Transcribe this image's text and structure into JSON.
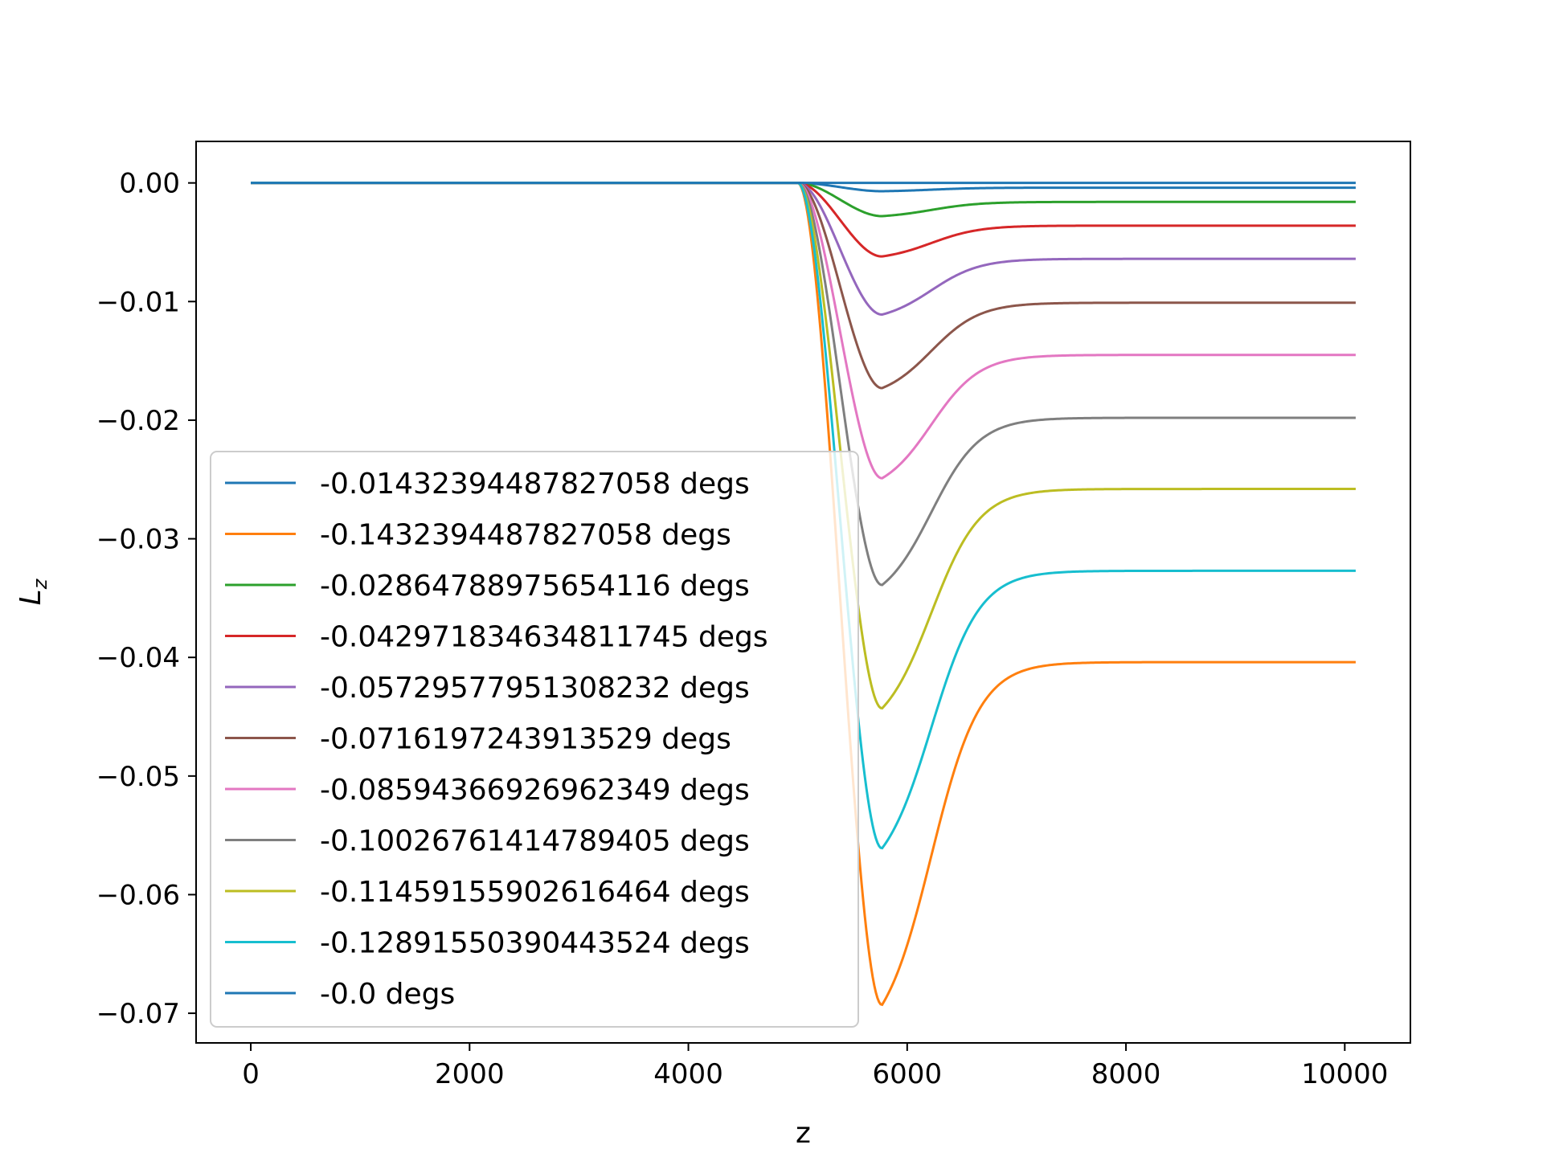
{
  "chart_data": {
    "type": "line",
    "title": "",
    "xlabel": "z",
    "ylabel_main": "L",
    "ylabel_sub": "z",
    "xlim": [
      -500,
      10600
    ],
    "ylim": [
      -0.0725,
      0.0035
    ],
    "xticks": [
      0,
      2000,
      4000,
      6000,
      8000,
      10000
    ],
    "xtick_labels": [
      "0",
      "2000",
      "4000",
      "6000",
      "8000",
      "10000"
    ],
    "yticks": [
      0.0,
      -0.01,
      -0.02,
      -0.03,
      -0.04,
      -0.05,
      -0.06,
      -0.07
    ],
    "ytick_labels": [
      "0.00",
      "−0.01",
      "−0.02",
      "−0.03",
      "−0.04",
      "−0.05",
      "−0.06",
      "−0.07"
    ],
    "grid": false,
    "legend_position": "lower-left",
    "model": {
      "x_start": 0,
      "x_end": 10100,
      "x_onset": 5000,
      "x_min": 5770
    },
    "series": [
      {
        "name": "-0.01432394487827058 degs",
        "color": "#1f77b4",
        "min": -0.0007,
        "end": -0.0004
      },
      {
        "name": "-0.1432394487827058 degs",
        "color": "#ff7f0e",
        "min": -0.0693,
        "end": -0.0404
      },
      {
        "name": "-0.02864788975654116 degs",
        "color": "#2ca02c",
        "min": -0.0028,
        "end": -0.0016
      },
      {
        "name": "-0.042971834634811745 degs",
        "color": "#d62728",
        "min": -0.0062,
        "end": -0.0036
      },
      {
        "name": "-0.05729577951308232 degs",
        "color": "#9467bd",
        "min": -0.0111,
        "end": -0.0064
      },
      {
        "name": "-0.0716197243913529 degs",
        "color": "#8c564b",
        "min": -0.0173,
        "end": -0.0101
      },
      {
        "name": "-0.08594366926962349 degs",
        "color": "#e377c2",
        "min": -0.0249,
        "end": -0.0145
      },
      {
        "name": "-0.10026761414789405 degs",
        "color": "#7f7f7f",
        "min": -0.0339,
        "end": -0.0198
      },
      {
        "name": "-0.11459155902616464 degs",
        "color": "#bcbd22",
        "min": -0.0443,
        "end": -0.0258
      },
      {
        "name": "-0.12891550390443524 degs",
        "color": "#17becf",
        "min": -0.0561,
        "end": -0.0327
      },
      {
        "name": "-0.0 degs",
        "color": "#1f77b4",
        "min": 0.0,
        "end": 0.0
      }
    ]
  }
}
